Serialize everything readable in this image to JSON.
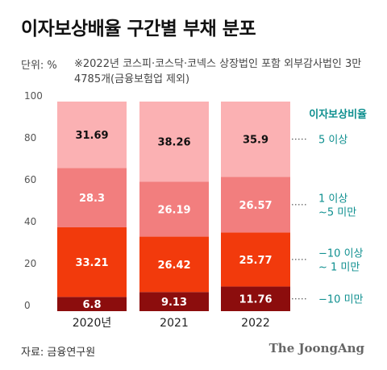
{
  "header": {
    "title": "이자보상배율 구간별 부채 분포",
    "unit": "단위: %",
    "note": "※2022년 코스피·코스닥·코넥스 상장법인 포함 외부감사법인 3만4785개(금융보험업 제외)"
  },
  "footer": {
    "source": "자료: 금융연구원",
    "brand": "The JoongAng"
  },
  "chart_data": {
    "type": "bar",
    "stacked": true,
    "categories": [
      "2020년",
      "2021",
      "2022"
    ],
    "ylim": [
      0,
      100
    ],
    "yticks": [
      0,
      20,
      40,
      60,
      80,
      100
    ],
    "legend_title": "이자보상비율",
    "series": [
      {
        "name": "-10 미만",
        "values": [
          6.8,
          9.13,
          11.76
        ],
        "color": "#8c0d0d",
        "label_color": "#ffffff"
      },
      {
        "name": "-10 이상 ~1 미만",
        "values": [
          33.21,
          26.42,
          25.77
        ],
        "color": "#f23a0c",
        "label_color": "#ffffff"
      },
      {
        "name": "1 이상 ~5 미만",
        "values": [
          28.3,
          26.19,
          26.57
        ],
        "color": "#f27e7e",
        "label_color": "#ffffff"
      },
      {
        "name": "5 이상",
        "values": [
          31.69,
          38.26,
          35.9
        ],
        "color": "#fbb1b3",
        "label_color": "#111111"
      }
    ],
    "value_labels": [
      [
        "6.8",
        "9.13",
        "11.76"
      ],
      [
        "33.21",
        "26.42",
        "25.77"
      ],
      [
        "28.3",
        "26.19",
        "26.57"
      ],
      [
        "31.69",
        "38.26",
        "35.9"
      ]
    ],
    "series_labels": [
      [
        "−10 미만"
      ],
      [
        "−10 이상",
        "~ 1 미만"
      ],
      [
        "1 이상",
        "~5 미만"
      ],
      [
        "5 이상"
      ]
    ],
    "colors": {
      "accent": "#0e8f8f"
    }
  }
}
